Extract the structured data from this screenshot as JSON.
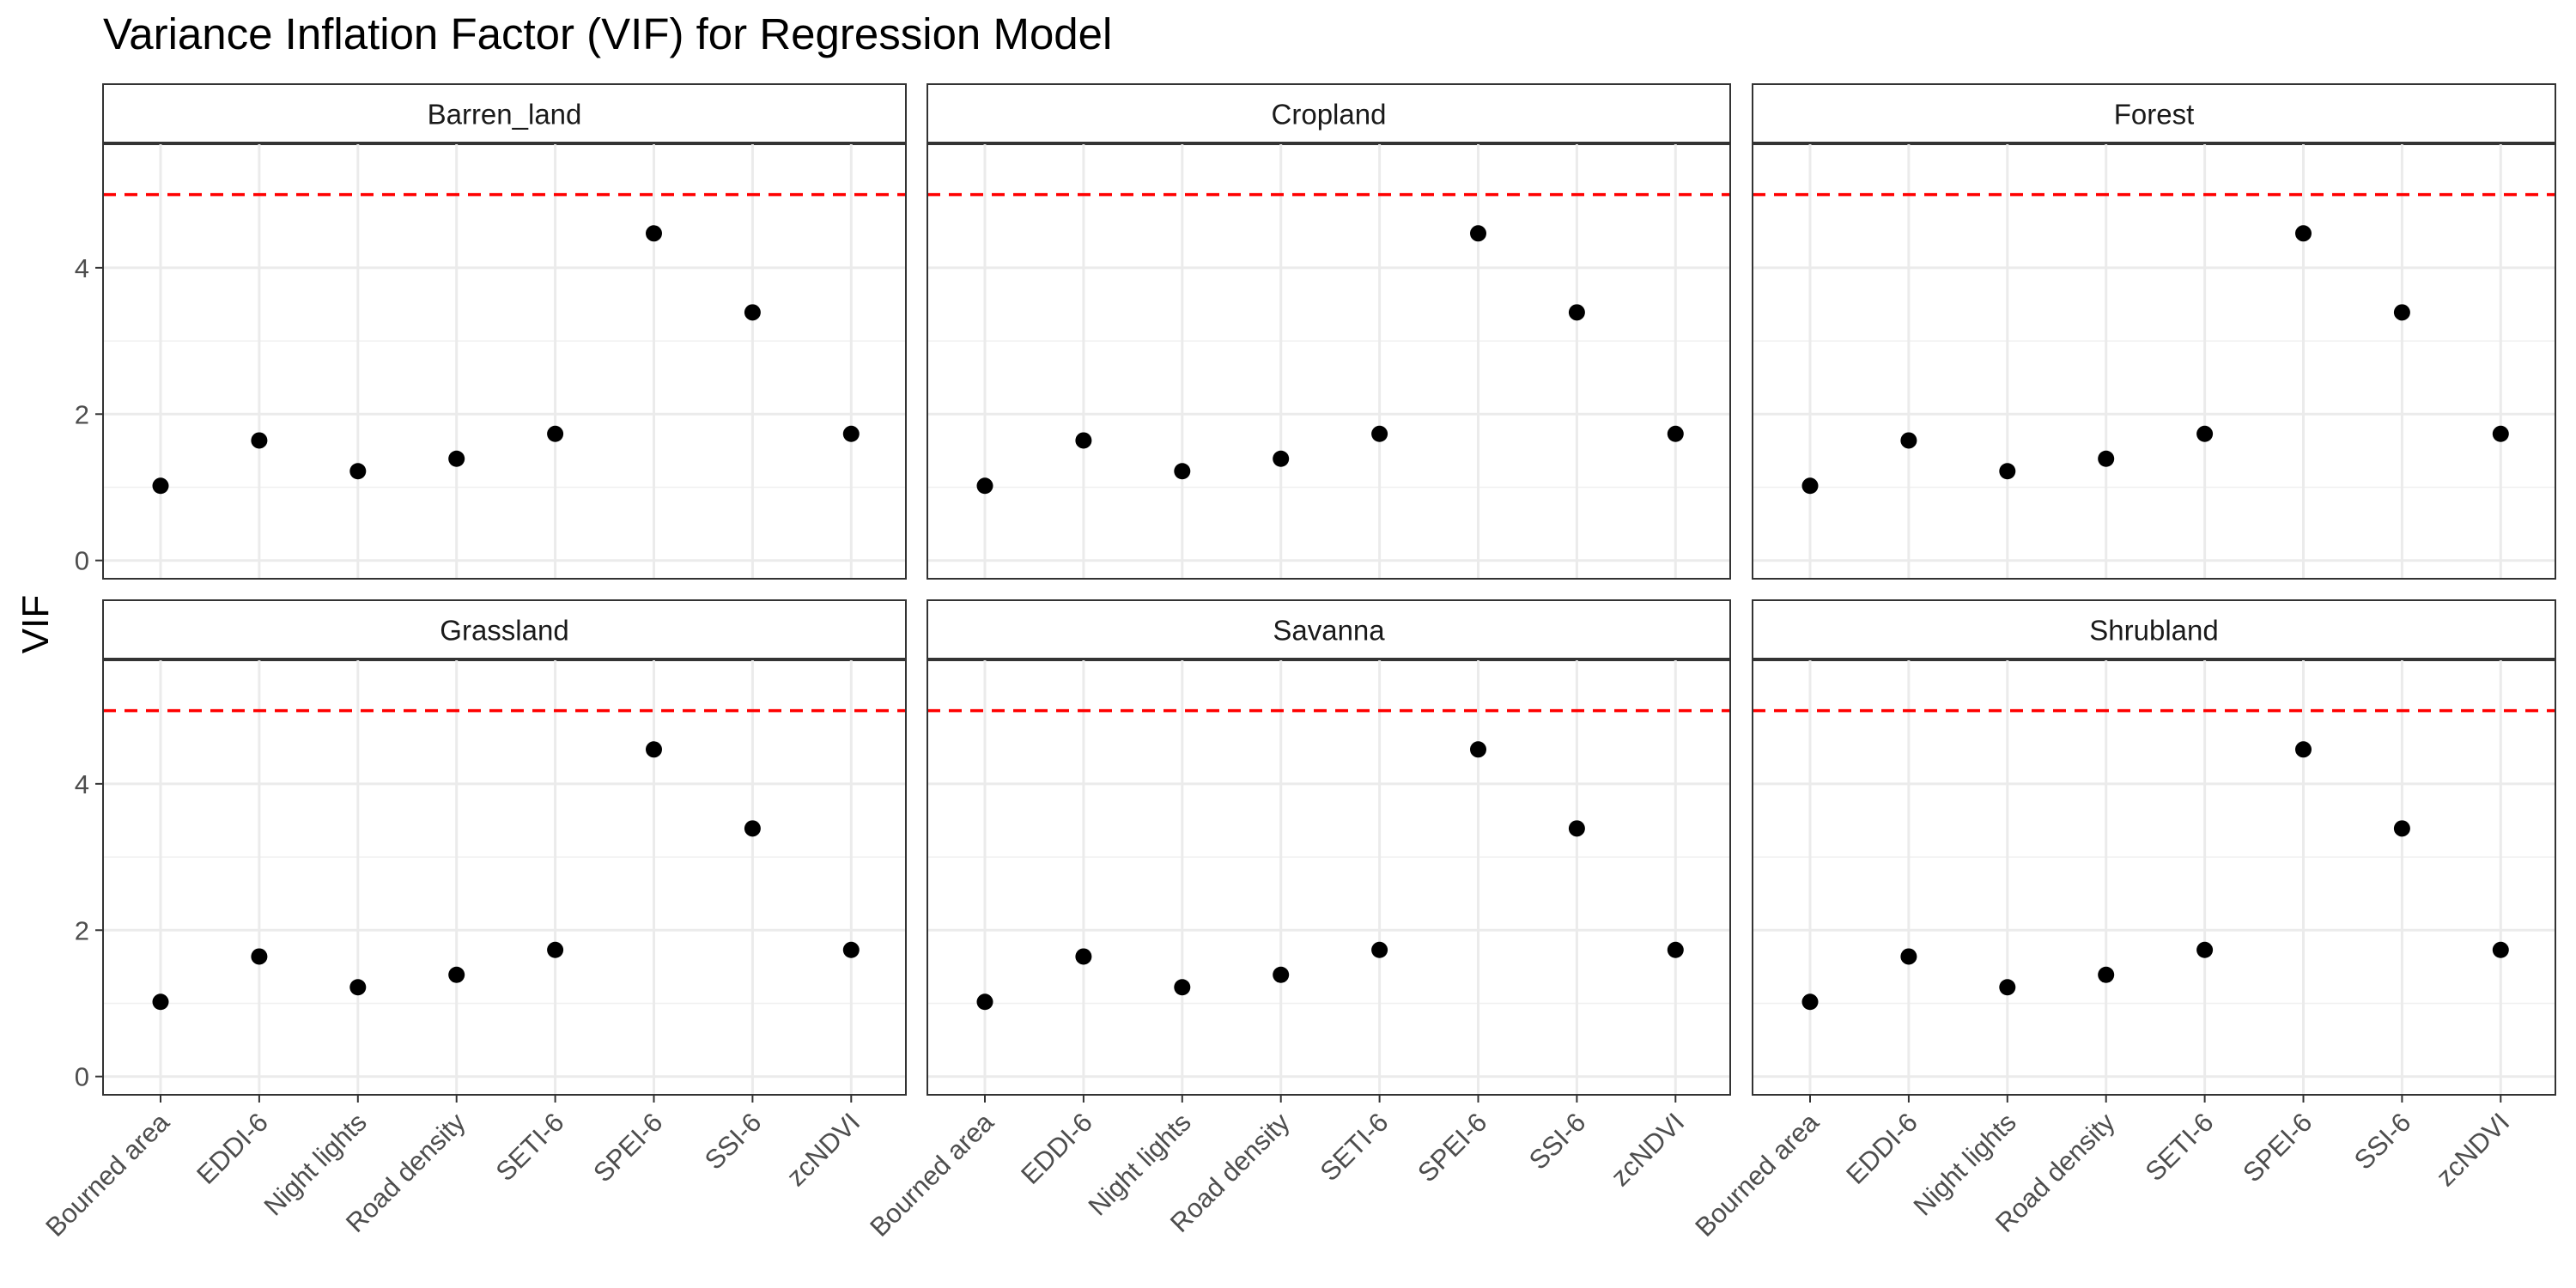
{
  "chart_data": {
    "type": "scatter",
    "title": "Variance Inflation Factor (VIF) for Regression Model",
    "xlabel": "",
    "ylabel": "VIF",
    "ylim": [
      -0.25,
      5.7
    ],
    "yticks": [
      0,
      2,
      4
    ],
    "grid": true,
    "reference_line": {
      "y": 5,
      "style": "dashed",
      "color": "#ff0000"
    },
    "point_color": "#000000",
    "categories": [
      "Bourned area",
      "EDDI-6",
      "Night lights",
      "Road density",
      "SETI-6",
      "SPEI-6",
      "SSI-6",
      "zcNDVI"
    ],
    "facets": [
      {
        "name": "Barren_land",
        "values": [
          1.02,
          1.64,
          1.22,
          1.39,
          1.73,
          4.47,
          3.39,
          1.73
        ]
      },
      {
        "name": "Cropland",
        "values": [
          1.02,
          1.64,
          1.22,
          1.39,
          1.73,
          4.47,
          3.39,
          1.73
        ]
      },
      {
        "name": "Forest",
        "values": [
          1.02,
          1.64,
          1.22,
          1.39,
          1.73,
          4.47,
          3.39,
          1.73
        ]
      },
      {
        "name": "Grassland",
        "values": [
          1.02,
          1.64,
          1.22,
          1.39,
          1.73,
          4.47,
          3.39,
          1.73
        ]
      },
      {
        "name": "Savanna",
        "values": [
          1.02,
          1.64,
          1.22,
          1.39,
          1.73,
          4.47,
          3.39,
          1.73
        ]
      },
      {
        "name": "Shrubland",
        "values": [
          1.02,
          1.64,
          1.22,
          1.39,
          1.73,
          4.47,
          3.39,
          1.73
        ]
      }
    ]
  }
}
